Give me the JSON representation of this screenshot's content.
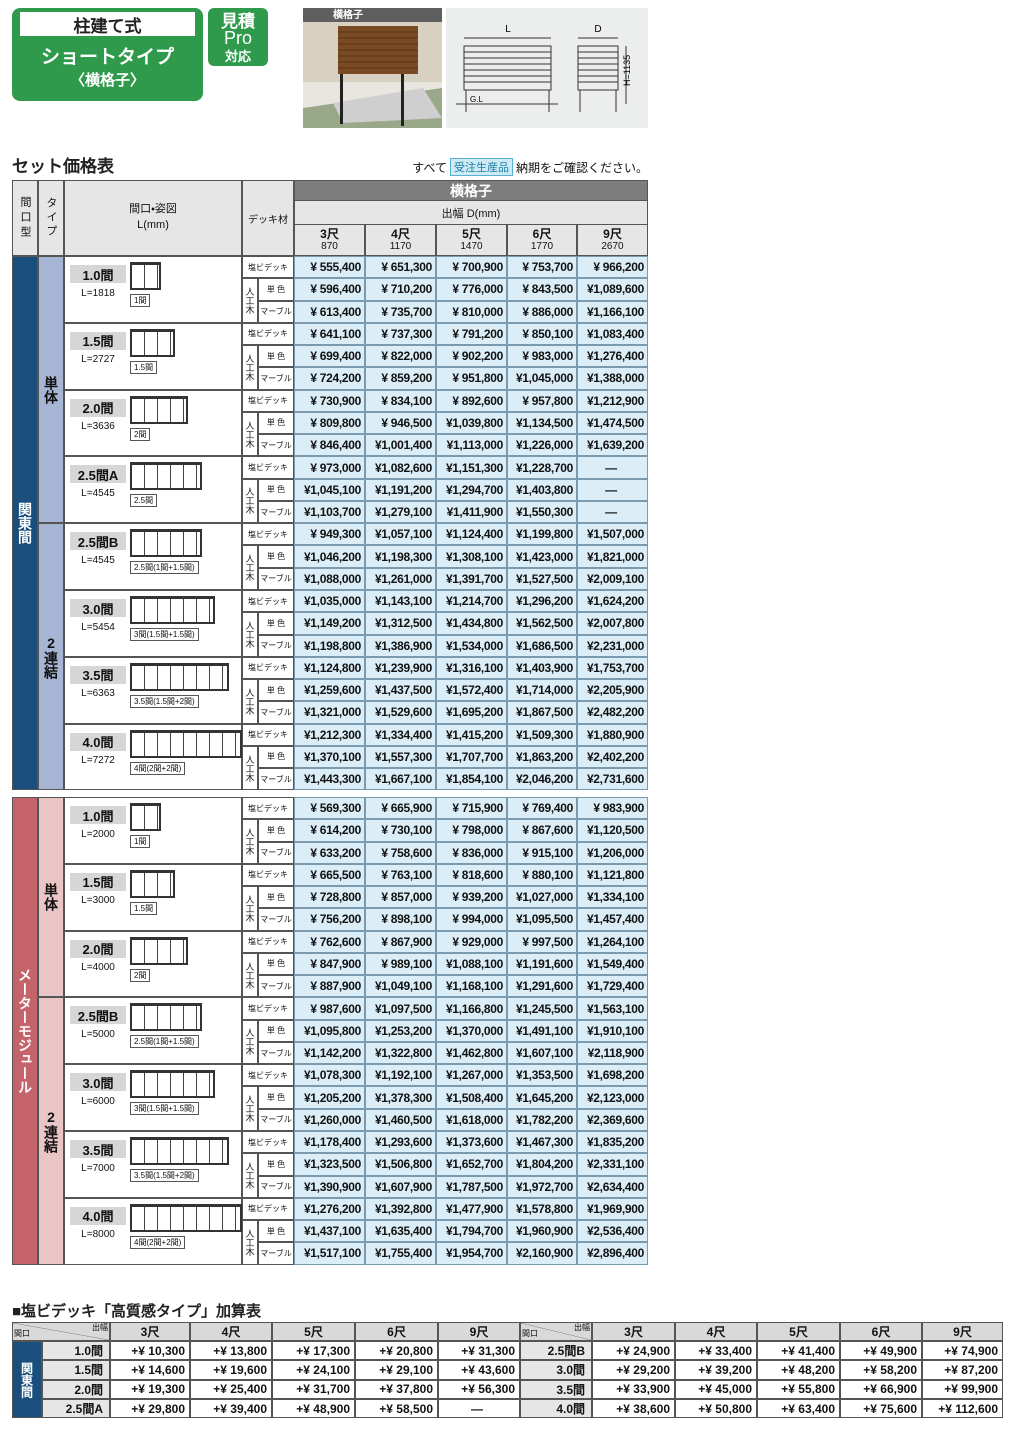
{
  "header": {
    "badge": {
      "line1": "柱建て式",
      "line2": "ショートタイプ",
      "line3": "〈横格子〉"
    },
    "pro_badge": {
      "line1": "見積",
      "line2": "Pro",
      "line3": "対応"
    },
    "photo_label": "横格子",
    "diagram": {
      "L": "L",
      "D": "D",
      "H": "H=1135",
      "GL": "G.L"
    }
  },
  "price_table": {
    "title": "セット価格表",
    "note": {
      "before": "すべて",
      "tag": "受注生産品",
      "after": "納期をご確認ください。"
    },
    "headers": {
      "frontage_type": "間口型",
      "type": "タイプ",
      "frontage": "間口・姿図",
      "length": "L(mm)",
      "deck": "デッキ材",
      "product": "横格子",
      "depth": "出幅 D(mm)"
    },
    "columns": [
      {
        "label": "3尺",
        "mm": "870"
      },
      {
        "label": "4尺",
        "mm": "1170"
      },
      {
        "label": "5尺",
        "mm": "1470"
      },
      {
        "label": "6尺",
        "mm": "1770"
      },
      {
        "label": "9尺",
        "mm": "2670"
      }
    ],
    "deck_labels": {
      "pvc": "塩ビデッキ",
      "wood": "人工木",
      "solid": "単 色",
      "marble": "マーブル"
    },
    "groups": [
      {
        "name": "関東間",
        "types": [
          {
            "name": "単体",
            "rows": [
              {
                "size": "1.0間",
                "length": "L=1818",
                "span": "1間",
                "prices": [
                  [
                    "¥ 555,400",
                    "¥ 651,300",
                    "¥ 700,900",
                    "¥ 753,700",
                    "¥ 966,200"
                  ],
                  [
                    "¥ 596,400",
                    "¥ 710,200",
                    "¥ 776,000",
                    "¥ 843,500",
                    "¥1,089,600"
                  ],
                  [
                    "¥ 613,400",
                    "¥ 735,700",
                    "¥ 810,000",
                    "¥ 886,000",
                    "¥1,166,100"
                  ]
                ]
              },
              {
                "size": "1.5間",
                "length": "L=2727",
                "span": "1.5間",
                "prices": [
                  [
                    "¥ 641,100",
                    "¥ 737,300",
                    "¥ 791,200",
                    "¥ 850,100",
                    "¥1,083,400"
                  ],
                  [
                    "¥ 699,400",
                    "¥ 822,000",
                    "¥ 902,200",
                    "¥ 983,000",
                    "¥1,276,400"
                  ],
                  [
                    "¥ 724,200",
                    "¥ 859,200",
                    "¥ 951,800",
                    "¥1,045,000",
                    "¥1,388,000"
                  ]
                ]
              },
              {
                "size": "2.0間",
                "length": "L=3636",
                "span": "2間",
                "prices": [
                  [
                    "¥ 730,900",
                    "¥ 834,100",
                    "¥ 892,600",
                    "¥ 957,800",
                    "¥1,212,900"
                  ],
                  [
                    "¥ 809,800",
                    "¥ 946,500",
                    "¥1,039,800",
                    "¥1,134,500",
                    "¥1,474,500"
                  ],
                  [
                    "¥ 846,400",
                    "¥1,001,400",
                    "¥1,113,000",
                    "¥1,226,000",
                    "¥1,639,200"
                  ]
                ]
              },
              {
                "size": "2.5間A",
                "length": "L=4545",
                "span": "2.5間",
                "prices": [
                  [
                    "¥ 973,000",
                    "¥1,082,600",
                    "¥1,151,300",
                    "¥1,228,700",
                    "—"
                  ],
                  [
                    "¥1,045,100",
                    "¥1,191,200",
                    "¥1,294,700",
                    "¥1,403,800",
                    "—"
                  ],
                  [
                    "¥1,103,700",
                    "¥1,279,100",
                    "¥1,411,900",
                    "¥1,550,300",
                    "—"
                  ]
                ]
              }
            ]
          },
          {
            "name": "2連結",
            "rows": [
              {
                "size": "2.5間B",
                "length": "L=4545",
                "span": "2.5間(1間+1.5間)",
                "prices": [
                  [
                    "¥ 949,300",
                    "¥1,057,100",
                    "¥1,124,400",
                    "¥1,199,800",
                    "¥1,507,000"
                  ],
                  [
                    "¥1,046,200",
                    "¥1,198,300",
                    "¥1,308,100",
                    "¥1,423,000",
                    "¥1,821,000"
                  ],
                  [
                    "¥1,088,000",
                    "¥1,261,000",
                    "¥1,391,700",
                    "¥1,527,500",
                    "¥2,009,100"
                  ]
                ]
              },
              {
                "size": "3.0間",
                "length": "L=5454",
                "span": "3間(1.5間+1.5間)",
                "prices": [
                  [
                    "¥1,035,000",
                    "¥1,143,100",
                    "¥1,214,700",
                    "¥1,296,200",
                    "¥1,624,200"
                  ],
                  [
                    "¥1,149,200",
                    "¥1,312,500",
                    "¥1,434,800",
                    "¥1,562,500",
                    "¥2,007,800"
                  ],
                  [
                    "¥1,198,800",
                    "¥1,386,900",
                    "¥1,534,000",
                    "¥1,686,500",
                    "¥2,231,000"
                  ]
                ]
              },
              {
                "size": "3.5間",
                "length": "L=6363",
                "span": "3.5間(1.5間+2間)",
                "prices": [
                  [
                    "¥1,124,800",
                    "¥1,239,900",
                    "¥1,316,100",
                    "¥1,403,900",
                    "¥1,753,700"
                  ],
                  [
                    "¥1,259,600",
                    "¥1,437,500",
                    "¥1,572,400",
                    "¥1,714,000",
                    "¥2,205,900"
                  ],
                  [
                    "¥1,321,000",
                    "¥1,529,600",
                    "¥1,695,200",
                    "¥1,867,500",
                    "¥2,482,200"
                  ]
                ]
              },
              {
                "size": "4.0間",
                "length": "L=7272",
                "span": "4間(2間+2間)",
                "prices": [
                  [
                    "¥1,212,300",
                    "¥1,334,400",
                    "¥1,415,200",
                    "¥1,509,300",
                    "¥1,880,900"
                  ],
                  [
                    "¥1,370,100",
                    "¥1,557,300",
                    "¥1,707,700",
                    "¥1,863,200",
                    "¥2,402,200"
                  ],
                  [
                    "¥1,443,300",
                    "¥1,667,100",
                    "¥1,854,100",
                    "¥2,046,200",
                    "¥2,731,600"
                  ]
                ]
              }
            ]
          }
        ]
      },
      {
        "name": "メーターモジュール",
        "types": [
          {
            "name": "単体",
            "rows": [
              {
                "size": "1.0間",
                "length": "L=2000",
                "span": "1間",
                "prices": [
                  [
                    "¥ 569,300",
                    "¥ 665,900",
                    "¥ 715,900",
                    "¥ 769,400",
                    "¥ 983,900"
                  ],
                  [
                    "¥ 614,200",
                    "¥ 730,100",
                    "¥ 798,000",
                    "¥ 867,600",
                    "¥1,120,500"
                  ],
                  [
                    "¥ 633,200",
                    "¥ 758,600",
                    "¥ 836,000",
                    "¥ 915,100",
                    "¥1,206,000"
                  ]
                ]
              },
              {
                "size": "1.5間",
                "length": "L=3000",
                "span": "1.5間",
                "prices": [
                  [
                    "¥ 665,500",
                    "¥ 763,100",
                    "¥ 818,600",
                    "¥ 880,100",
                    "¥1,121,800"
                  ],
                  [
                    "¥ 728,800",
                    "¥ 857,000",
                    "¥ 939,200",
                    "¥1,027,000",
                    "¥1,334,100"
                  ],
                  [
                    "¥ 756,200",
                    "¥ 898,100",
                    "¥ 994,000",
                    "¥1,095,500",
                    "¥1,457,400"
                  ]
                ]
              },
              {
                "size": "2.0間",
                "length": "L=4000",
                "span": "2間",
                "prices": [
                  [
                    "¥ 762,600",
                    "¥ 867,900",
                    "¥ 929,000",
                    "¥ 997,500",
                    "¥1,264,100"
                  ],
                  [
                    "¥ 847,900",
                    "¥ 989,100",
                    "¥1,088,100",
                    "¥1,191,600",
                    "¥1,549,400"
                  ],
                  [
                    "¥ 887,900",
                    "¥1,049,100",
                    "¥1,168,100",
                    "¥1,291,600",
                    "¥1,729,400"
                  ]
                ]
              }
            ]
          },
          {
            "name": "2連結",
            "rows": [
              {
                "size": "2.5間B",
                "length": "L=5000",
                "span": "2.5間(1間+1.5間)",
                "prices": [
                  [
                    "¥ 987,600",
                    "¥1,097,500",
                    "¥1,166,800",
                    "¥1,245,500",
                    "¥1,563,100"
                  ],
                  [
                    "¥1,095,800",
                    "¥1,253,200",
                    "¥1,370,000",
                    "¥1,491,100",
                    "¥1,910,100"
                  ],
                  [
                    "¥1,142,200",
                    "¥1,322,800",
                    "¥1,462,800",
                    "¥1,607,100",
                    "¥2,118,900"
                  ]
                ]
              },
              {
                "size": "3.0間",
                "length": "L=6000",
                "span": "3間(1.5間+1.5間)",
                "prices": [
                  [
                    "¥1,078,300",
                    "¥1,192,100",
                    "¥1,267,000",
                    "¥1,353,500",
                    "¥1,698,200"
                  ],
                  [
                    "¥1,205,200",
                    "¥1,378,300",
                    "¥1,508,400",
                    "¥1,645,200",
                    "¥2,123,000"
                  ],
                  [
                    "¥1,260,000",
                    "¥1,460,500",
                    "¥1,618,000",
                    "¥1,782,200",
                    "¥2,369,600"
                  ]
                ]
              },
              {
                "size": "3.5間",
                "length": "L=7000",
                "span": "3.5間(1.5間+2間)",
                "prices": [
                  [
                    "¥1,178,400",
                    "¥1,293,600",
                    "¥1,373,600",
                    "¥1,467,300",
                    "¥1,835,200"
                  ],
                  [
                    "¥1,323,500",
                    "¥1,506,800",
                    "¥1,652,700",
                    "¥1,804,200",
                    "¥2,331,100"
                  ],
                  [
                    "¥1,390,900",
                    "¥1,607,900",
                    "¥1,787,500",
                    "¥1,972,700",
                    "¥2,634,400"
                  ]
                ]
              },
              {
                "size": "4.0間",
                "length": "L=8000",
                "span": "4間(2間+2間)",
                "prices": [
                  [
                    "¥1,276,200",
                    "¥1,392,800",
                    "¥1,477,900",
                    "¥1,578,800",
                    "¥1,969,900"
                  ],
                  [
                    "¥1,437,100",
                    "¥1,635,400",
                    "¥1,794,700",
                    "¥1,960,900",
                    "¥2,536,400"
                  ],
                  [
                    "¥1,517,100",
                    "¥1,755,400",
                    "¥1,954,700",
                    "¥2,160,900",
                    "¥2,896,400"
                  ]
                ]
              }
            ]
          }
        ]
      }
    ]
  },
  "addon_table": {
    "title": "■塩ビデッキ「高質感タイプ」加算表",
    "corner": {
      "row": "間口",
      "col": "出幅"
    },
    "group": "関東間",
    "columns": [
      "3尺",
      "4尺",
      "5尺",
      "6尺",
      "9尺"
    ],
    "rows": [
      {
        "size": "1.0間",
        "values": [
          "+¥ 10,300",
          "+¥ 13,800",
          "+¥ 17,300",
          "+¥ 20,800",
          "+¥ 31,300"
        ]
      },
      {
        "size": "1.5間",
        "values": [
          "+¥ 14,600",
          "+¥ 19,600",
          "+¥ 24,100",
          "+¥ 29,100",
          "+¥ 43,600"
        ]
      },
      {
        "size": "2.0間",
        "values": [
          "+¥ 19,300",
          "+¥ 25,400",
          "+¥ 31,700",
          "+¥ 37,800",
          "+¥ 56,300"
        ]
      },
      {
        "size": "2.5間A",
        "values": [
          "+¥ 29,800",
          "+¥ 39,400",
          "+¥ 48,900",
          "+¥ 58,500",
          "—"
        ]
      },
      {
        "size": "2.5間B",
        "values": [
          "+¥ 24,900",
          "+¥ 33,400",
          "+¥ 41,400",
          "+¥ 49,900",
          "+¥ 74,900"
        ]
      },
      {
        "size": "3.0間",
        "values": [
          "+¥ 29,200",
          "+¥ 39,200",
          "+¥ 48,200",
          "+¥ 58,200",
          "+¥ 87,200"
        ]
      },
      {
        "size": "3.5間",
        "values": [
          "+¥ 33,900",
          "+¥ 45,000",
          "+¥ 55,800",
          "+¥ 66,900",
          "+¥ 99,900"
        ]
      },
      {
        "size": "4.0間",
        "values": [
          "+¥ 38,600",
          "+¥ 50,800",
          "+¥ 63,400",
          "+¥ 75,600",
          "+¥ 112,600"
        ]
      }
    ]
  }
}
